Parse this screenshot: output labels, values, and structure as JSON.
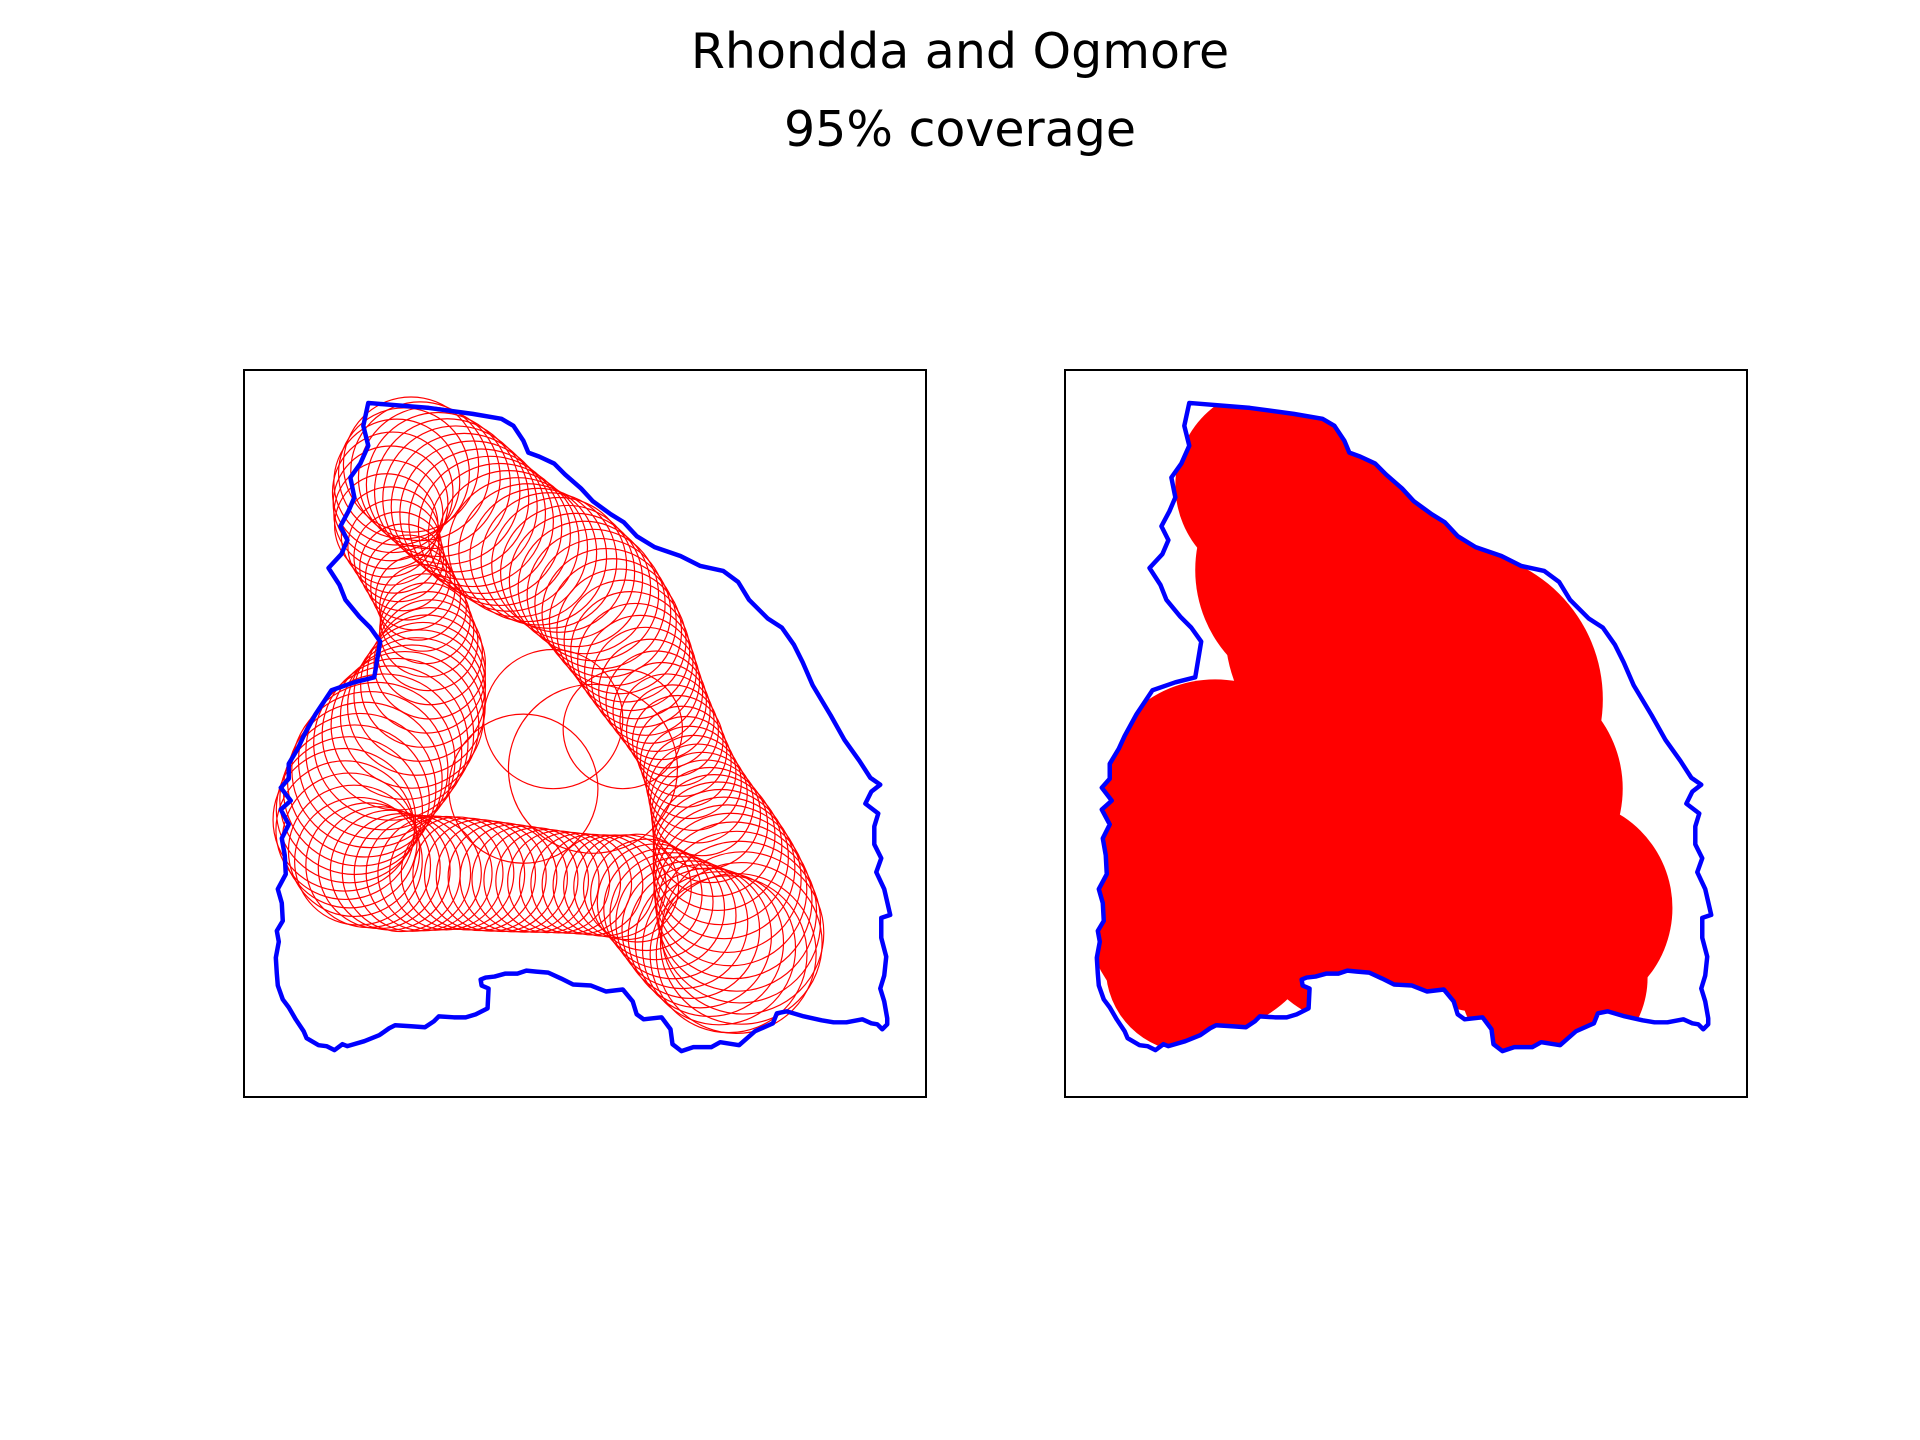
{
  "figure": {
    "title": "Rhondda and Ogmore",
    "subtitle": "95% coverage"
  },
  "panels": [
    {
      "id": "circle-outlines",
      "style": "outline"
    },
    {
      "id": "filled-coverage",
      "style": "filled"
    }
  ],
  "colors": {
    "boundary": "#0000ff",
    "coverage": "#ff0000",
    "frame": "#000000",
    "background": "#ffffff"
  }
}
